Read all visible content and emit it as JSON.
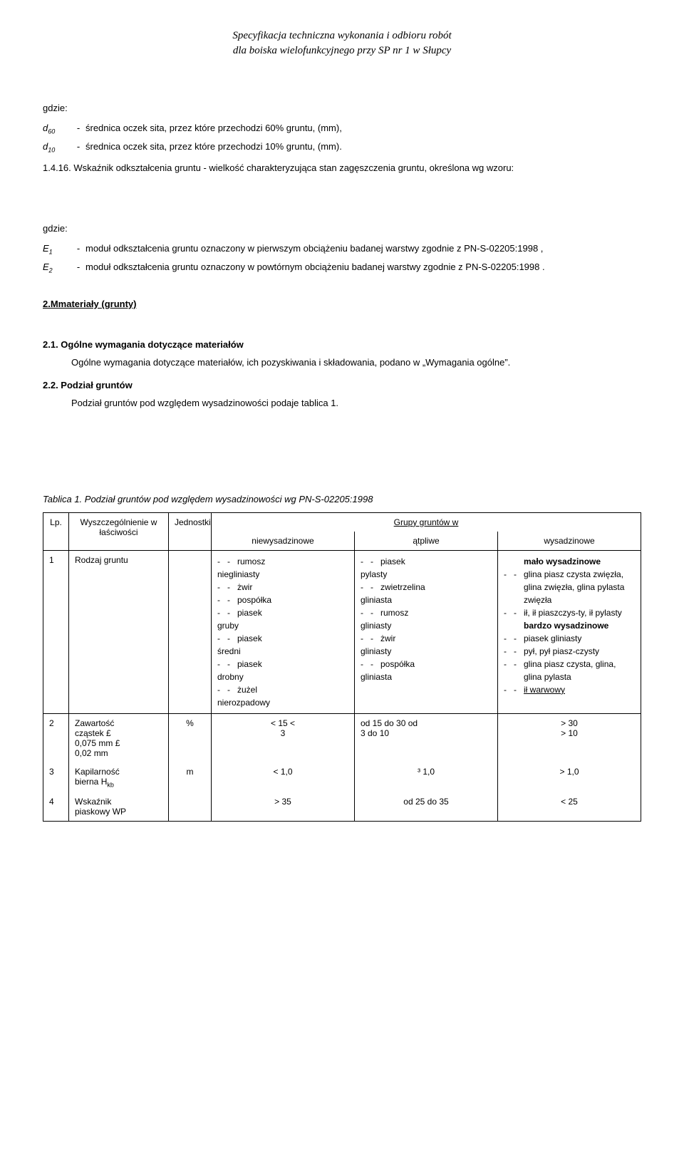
{
  "header": {
    "line1": "Specyfikacja techniczna wykonania i odbioru robót",
    "line2": "dla boiska wielofunkcyjnego przy SP nr 1 w Słupcy"
  },
  "gdzie1": {
    "label": "gdzie:",
    "d60_sym": "d",
    "d60_sub": "60",
    "d60_text": "średnica oczek sita, przez które przechodzi 60% gruntu, (mm),",
    "d10_sym": "d",
    "d10_sub": "10",
    "d10_text": "średnica oczek sita, przez które przechodzi 10% gruntu, (mm).",
    "dash": "-"
  },
  "para_1416": {
    "num": "1.4.16.",
    "text": " Wskaźnik odkształcenia gruntu - wielkość charakteryzująca stan zagęszczenia gruntu, określona wg wzoru:"
  },
  "gdzie2": {
    "label": "gdzie:",
    "e1_sym": "E",
    "e1_sub": "1",
    "e1_text": "moduł odkształcenia gruntu oznaczony w pierwszym obciążeniu badanej warstwy zgodnie z PN-S-02205:1998 ,",
    "e2_sym": "E",
    "e2_sub": "2",
    "e2_text": "moduł odkształcenia gruntu oznaczony w powtórnym obciążeniu badanej warstwy zgodnie z PN-S-02205:1998 .",
    "dash": "-"
  },
  "sec2": {
    "title": "2.Mmateriały (grunty)",
    "s21_title": "2.1. Ogólne wymagania dotyczące materiałów",
    "s21_text": "Ogólne wymagania dotyczące materiałów, ich pozyskiwania i składowania, podano w „Wymagania ogólne”.",
    "s22_title": "2.2. Podział gruntów",
    "s22_text": "Podział gruntów pod względem wysadzinowości podaje tablica 1."
  },
  "table_caption": "Tablica 1. Podział gruntów pod względem wysadzinowości wg PN-S-02205:1998",
  "table": {
    "head_lp": "Lp.",
    "head_name": "Wyszczególnienie w łaściwości",
    "head_unit": "Jednostki",
    "head_group": "Grupy gruntów w",
    "sub1": "niewysadzinowe",
    "sub2": "ątpliwe",
    "sub3": "wysadzinowe",
    "r1": {
      "lp": "1",
      "name": "Rodzaj gruntu",
      "unit": "",
      "c1": [
        [
          "‐",
          "‐",
          "rumosz"
        ],
        [
          "niegliniasty"
        ],
        [
          "‐",
          "‐",
          "żwir"
        ],
        [
          "‐",
          "‐",
          "pospółka"
        ],
        [
          "‐",
          "‐",
          "piasek"
        ],
        [
          "gruby"
        ],
        [
          "‐",
          "‐",
          "piasek"
        ],
        [
          "średni"
        ],
        [
          "‐",
          "‐",
          "piasek"
        ],
        [
          "drobny"
        ],
        [
          "‐",
          "‐",
          "żużel"
        ],
        [
          "nierozpadowy"
        ]
      ],
      "c2": [
        [
          "‐",
          "‐",
          "piasek"
        ],
        [
          "pylasty"
        ],
        [
          "‐",
          "‐",
          "zwietrzelina"
        ],
        [
          "gliniasta"
        ],
        [
          "‐",
          "‐",
          "rumosz"
        ],
        [
          "gliniasty"
        ],
        [
          "‐",
          "‐",
          "żwir"
        ],
        [
          "gliniasty"
        ],
        [
          "‐",
          "‐",
          "pospółka"
        ],
        [
          "gliniasta"
        ]
      ],
      "c3": [
        [
          "",
          "",
          "mało wysadzinowe",
          "bold"
        ],
        [
          "‐",
          "‐",
          "glina piasz czysta zwięzła, glina zwięzła, glina pylasta zwięzła"
        ],
        [
          "‐",
          "‐",
          "ił, ił piaszczys-ty, ił pylasty"
        ],
        [
          "",
          "",
          "bardzo wysadzinowe",
          "bold"
        ],
        [
          "‐",
          "‐",
          "piasek gliniasty"
        ],
        [
          "‐",
          "‐",
          "pył, pył piasz-czysty"
        ],
        [
          "‐",
          "‐",
          "glina piasz czysta, glina, glina pylasta"
        ],
        [
          "‐",
          "‐",
          "ił warwowy",
          "underline"
        ]
      ]
    },
    "r2": {
      "lp": "2",
      "name_l1": "Zawartość",
      "name_l2": "cząstek £",
      "name_l3": "0,075 mm £",
      "name_l4": "0,02   mm",
      "unit": "%",
      "c1a": "<  15 <",
      "c1b": "3",
      "c2a": "od 15 do 30 od",
      "c2b": "3 do 10",
      "c3a": ">    30",
      "c3b": ">    10"
    },
    "r3": {
      "lp": "3",
      "name_l1": "Kapilarność",
      "name_l2": "bierna H",
      "name_sub": "kb",
      "unit": "m",
      "c1": "<  1,0",
      "c2": "³ 1,0",
      "c3": ">  1,0"
    },
    "r4": {
      "lp": "4",
      "name_l1": "Wskaźnik",
      "name_l2": "piaskowy WP",
      "unit": "",
      "c1": ">  35",
      "c2": "od 25 do 35",
      "c3": "<  25"
    }
  }
}
